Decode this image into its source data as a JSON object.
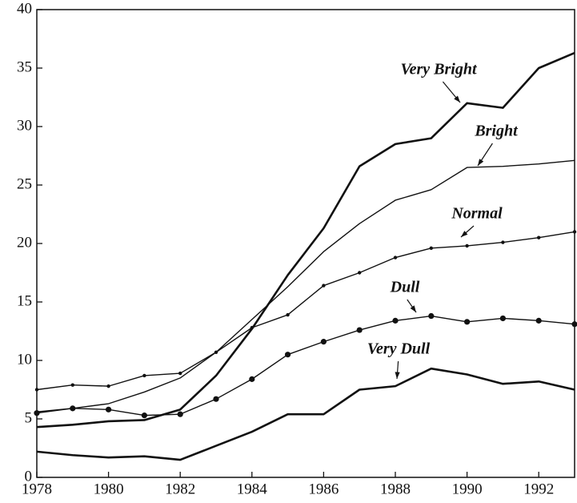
{
  "chart_data": {
    "type": "line",
    "x": [
      1978,
      1979,
      1980,
      1981,
      1982,
      1983,
      1984,
      1985,
      1986,
      1987,
      1988,
      1989,
      1990,
      1991,
      1992,
      1993
    ],
    "xlim": [
      1978,
      1993
    ],
    "xticks": [
      1978,
      1980,
      1982,
      1984,
      1986,
      1988,
      1990,
      1992
    ],
    "ylim": [
      0,
      40
    ],
    "yticks": [
      0,
      5,
      10,
      15,
      20,
      25,
      30,
      35,
      40
    ],
    "grid": false,
    "series": [
      {
        "name": "Very Bright",
        "color": "#111111",
        "line_style": "thick",
        "marker": "none",
        "values": [
          4.3,
          4.5,
          4.8,
          4.9,
          5.8,
          8.7,
          12.7,
          17.3,
          21.3,
          26.6,
          28.5,
          29.0,
          32.0,
          31.6,
          35.0,
          36.3
        ]
      },
      {
        "name": "Bright",
        "color": "#111111",
        "line_style": "thin",
        "marker": "none",
        "values": [
          5.6,
          5.9,
          6.3,
          7.3,
          8.5,
          10.7,
          13.5,
          16.3,
          19.3,
          21.7,
          23.7,
          24.6,
          26.5,
          26.6,
          26.8,
          27.1
        ]
      },
      {
        "name": "Normal",
        "color": "#111111",
        "line_style": "thin",
        "marker": "small-dot",
        "values": [
          7.5,
          7.9,
          7.8,
          8.7,
          8.9,
          10.7,
          12.8,
          13.9,
          16.4,
          17.5,
          18.8,
          19.6,
          19.8,
          20.1,
          20.5,
          21.0
        ]
      },
      {
        "name": "Dull",
        "color": "#111111",
        "line_style": "thin",
        "marker": "large-dot",
        "values": [
          5.5,
          5.9,
          5.8,
          5.3,
          5.4,
          6.7,
          8.4,
          10.5,
          11.6,
          12.6,
          13.4,
          13.8,
          13.3,
          13.6,
          13.4,
          13.1
        ]
      },
      {
        "name": "Very Dull",
        "color": "#111111",
        "line_style": "thick",
        "marker": "none",
        "values": [
          2.2,
          1.9,
          1.7,
          1.8,
          1.5,
          2.7,
          3.9,
          5.4,
          5.4,
          7.5,
          7.8,
          9.3,
          8.8,
          8.0,
          8.2,
          7.5
        ]
      }
    ]
  }
}
